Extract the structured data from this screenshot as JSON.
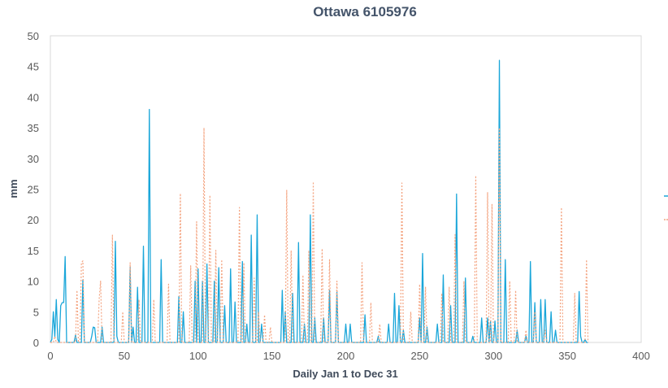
{
  "chart_data": {
    "type": "line",
    "title": "Ottawa 6105976",
    "xlabel": "Daily Jan 1 to Dec 31",
    "ylabel": "mm",
    "xlim": [
      0,
      400
    ],
    "ylim": [
      0,
      50
    ],
    "x_ticks": [
      "0",
      "50",
      "100",
      "150",
      "200",
      "250",
      "300",
      "350",
      "400"
    ],
    "y_ticks": [
      "0",
      "5",
      "10",
      "15",
      "20",
      "25",
      "30",
      "35",
      "40",
      "45",
      "50"
    ],
    "grid": false,
    "legend": "right",
    "series": [
      {
        "color": "#1aa6d9",
        "style": "solid",
        "peaks": [
          [
            1,
            0.5
          ],
          [
            2,
            5
          ],
          [
            3,
            1
          ],
          [
            4,
            7
          ],
          [
            5,
            0.5
          ],
          [
            6,
            0
          ],
          [
            7,
            6
          ],
          [
            8,
            6.5
          ],
          [
            9,
            6.5
          ],
          [
            10,
            14
          ],
          [
            11,
            0
          ],
          [
            16,
            0
          ],
          [
            17,
            1.2
          ],
          [
            18,
            0
          ],
          [
            22,
            10.2
          ],
          [
            23,
            0
          ],
          [
            28,
            1
          ],
          [
            29,
            2.5
          ],
          [
            30,
            2.4
          ],
          [
            31,
            0
          ],
          [
            35,
            2.5
          ],
          [
            36,
            0
          ],
          [
            43,
            0
          ],
          [
            44,
            16.5
          ],
          [
            45,
            1
          ],
          [
            46,
            0
          ],
          [
            53,
            0
          ],
          [
            54,
            12.3
          ],
          [
            55,
            0
          ],
          [
            56,
            2.5
          ],
          [
            57,
            0
          ],
          [
            59,
            9
          ],
          [
            60,
            0
          ],
          [
            63,
            15.7
          ],
          [
            64,
            0
          ],
          [
            67,
            38
          ],
          [
            68,
            0
          ],
          [
            75,
            13.5
          ],
          [
            76,
            0
          ],
          [
            86,
            0
          ],
          [
            87,
            7.5
          ],
          [
            88,
            0
          ],
          [
            89,
            0
          ],
          [
            90,
            5
          ],
          [
            91,
            0
          ],
          [
            97,
            0
          ],
          [
            98,
            10
          ],
          [
            99,
            0
          ],
          [
            100,
            12
          ],
          [
            101,
            0
          ],
          [
            103,
            10
          ],
          [
            104,
            0
          ],
          [
            106,
            12.8
          ],
          [
            107,
            0
          ],
          [
            111,
            10
          ],
          [
            112,
            0
          ],
          [
            114,
            12.2
          ],
          [
            115,
            0
          ],
          [
            118,
            6
          ],
          [
            119,
            0
          ],
          [
            122,
            12
          ],
          [
            123,
            0
          ],
          [
            125,
            6.6
          ],
          [
            126,
            0
          ],
          [
            130,
            13.2
          ],
          [
            131,
            0
          ],
          [
            133,
            3
          ],
          [
            134,
            0
          ],
          [
            136,
            17.5
          ],
          [
            137,
            0
          ],
          [
            140,
            20.8
          ],
          [
            141,
            0
          ],
          [
            143,
            3
          ],
          [
            144,
            0
          ],
          [
            157,
            8.5
          ],
          [
            158,
            0
          ],
          [
            159,
            5
          ],
          [
            160,
            0
          ],
          [
            164,
            8
          ],
          [
            165,
            0
          ],
          [
            168,
            16.3
          ],
          [
            169,
            0
          ],
          [
            172,
            3
          ],
          [
            173,
            0
          ],
          [
            176,
            20.8
          ],
          [
            177,
            0
          ],
          [
            179,
            4
          ],
          [
            180,
            0
          ],
          [
            185,
            4
          ],
          [
            186,
            0
          ],
          [
            189,
            8.5
          ],
          [
            190,
            0
          ],
          [
            194,
            8.2
          ],
          [
            195,
            0
          ],
          [
            200,
            3
          ],
          [
            201,
            0
          ],
          [
            203,
            3
          ],
          [
            204,
            0
          ],
          [
            213,
            4.5
          ],
          [
            214,
            0
          ],
          [
            222,
            1
          ],
          [
            223,
            0
          ],
          [
            228,
            0
          ],
          [
            229,
            3
          ],
          [
            230,
            0
          ],
          [
            233,
            8
          ],
          [
            234,
            0
          ],
          [
            236,
            6
          ],
          [
            237,
            0
          ],
          [
            239,
            2
          ],
          [
            240,
            0
          ],
          [
            250,
            4
          ],
          [
            251,
            0
          ],
          [
            252,
            14.5
          ],
          [
            253,
            0
          ],
          [
            255,
            2.5
          ],
          [
            256,
            0
          ],
          [
            262,
            3
          ],
          [
            263,
            0
          ],
          [
            266,
            11
          ],
          [
            267,
            0
          ],
          [
            271,
            6
          ],
          [
            272,
            0
          ],
          [
            275,
            24.2
          ],
          [
            276,
            0
          ],
          [
            281,
            10.5
          ],
          [
            282,
            0
          ],
          [
            286,
            1
          ],
          [
            287,
            0
          ],
          [
            292,
            4
          ],
          [
            293,
            0
          ],
          [
            296,
            4
          ],
          [
            297,
            0
          ],
          [
            298,
            3.5
          ],
          [
            299,
            0
          ],
          [
            301,
            3.5
          ],
          [
            302,
            0
          ],
          [
            304,
            46
          ],
          [
            305,
            0
          ],
          [
            308,
            13.5
          ],
          [
            309,
            0
          ],
          [
            316,
            2
          ],
          [
            317,
            0
          ],
          [
            322,
            1
          ],
          [
            323,
            0
          ],
          [
            325,
            13.2
          ],
          [
            326,
            0
          ],
          [
            328,
            6.5
          ],
          [
            329,
            0
          ],
          [
            332,
            7
          ],
          [
            333,
            0
          ],
          [
            335,
            7
          ],
          [
            336,
            0
          ],
          [
            339,
            5
          ],
          [
            340,
            0
          ],
          [
            342,
            2
          ],
          [
            343,
            0
          ],
          [
            357,
            0
          ],
          [
            358,
            8.3
          ],
          [
            359,
            1
          ],
          [
            360,
            0
          ],
          [
            362,
            0.5
          ],
          [
            363,
            0
          ]
        ]
      },
      {
        "color": "#f4a582",
        "style": "dotted",
        "peaks": [
          [
            0,
            0
          ],
          [
            3,
            1
          ],
          [
            4,
            0
          ],
          [
            18,
            8.5
          ],
          [
            19,
            0
          ],
          [
            21,
            13
          ],
          [
            22,
            13.3
          ],
          [
            23,
            0
          ],
          [
            33,
            7
          ],
          [
            34,
            10
          ],
          [
            35,
            0
          ],
          [
            42,
            17.5
          ],
          [
            43,
            0
          ],
          [
            49,
            5
          ],
          [
            50,
            0
          ],
          [
            54,
            13
          ],
          [
            55,
            0
          ],
          [
            60,
            7
          ],
          [
            61,
            0
          ],
          [
            70,
            7
          ],
          [
            71,
            0
          ],
          [
            80,
            9.5
          ],
          [
            81,
            0
          ],
          [
            88,
            24.3
          ],
          [
            89,
            0
          ],
          [
            95,
            12.5
          ],
          [
            96,
            0
          ],
          [
            99,
            19.7
          ],
          [
            100,
            0
          ],
          [
            104,
            35
          ],
          [
            105,
            0
          ],
          [
            108,
            24
          ],
          [
            109,
            0
          ],
          [
            112,
            15
          ],
          [
            113,
            0
          ],
          [
            116,
            13.5
          ],
          [
            117,
            0
          ],
          [
            128,
            22
          ],
          [
            129,
            0
          ],
          [
            131,
            13
          ],
          [
            132,
            0
          ],
          [
            138,
            10.5
          ],
          [
            139,
            0
          ],
          [
            141,
            5
          ],
          [
            142,
            0
          ],
          [
            145,
            4.5
          ],
          [
            146,
            0
          ],
          [
            149,
            2.5
          ],
          [
            150,
            0
          ],
          [
            160,
            24.8
          ],
          [
            161,
            0
          ],
          [
            163,
            15
          ],
          [
            164,
            0
          ],
          [
            171,
            11
          ],
          [
            172,
            0
          ],
          [
            175,
            15
          ],
          [
            176,
            0
          ],
          [
            178,
            26.2
          ],
          [
            179,
            0
          ],
          [
            184,
            15.3
          ],
          [
            185,
            0
          ],
          [
            189,
            13.5
          ],
          [
            190,
            0
          ],
          [
            194,
            10
          ],
          [
            195,
            0
          ],
          [
            211,
            13
          ],
          [
            212,
            0
          ],
          [
            217,
            6.5
          ],
          [
            218,
            0
          ],
          [
            223,
            3
          ],
          [
            224,
            0
          ],
          [
            238,
            26
          ],
          [
            239,
            0
          ],
          [
            244,
            5
          ],
          [
            245,
            0
          ],
          [
            250,
            9.5
          ],
          [
            251,
            0
          ],
          [
            254,
            9
          ],
          [
            255,
            0
          ],
          [
            265,
            8
          ],
          [
            266,
            0
          ],
          [
            270,
            9
          ],
          [
            271,
            0
          ],
          [
            274,
            17.6
          ],
          [
            275,
            0
          ],
          [
            280,
            10
          ],
          [
            281,
            0
          ],
          [
            288,
            27.2
          ],
          [
            289,
            0
          ],
          [
            296,
            24.5
          ],
          [
            297,
            0
          ],
          [
            299,
            22.5
          ],
          [
            300,
            0
          ],
          [
            304,
            35
          ],
          [
            305,
            0
          ],
          [
            311,
            10
          ],
          [
            312,
            0
          ],
          [
            315,
            8.5
          ],
          [
            316,
            0
          ],
          [
            322,
            2
          ],
          [
            323,
            0
          ],
          [
            328,
            5
          ],
          [
            329,
            0
          ],
          [
            335,
            2
          ],
          [
            336,
            0
          ],
          [
            346,
            22
          ],
          [
            347,
            0
          ],
          [
            355,
            8
          ],
          [
            356,
            0
          ],
          [
            363,
            13.5
          ],
          [
            364,
            0
          ]
        ]
      }
    ]
  }
}
